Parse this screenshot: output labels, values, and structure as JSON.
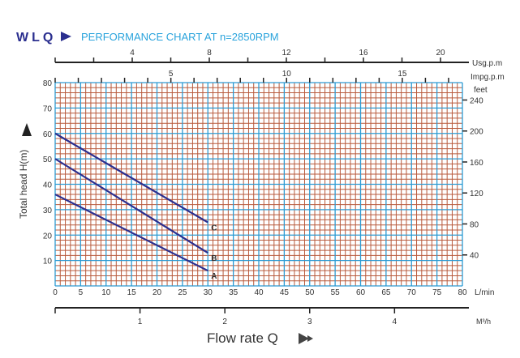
{
  "header": {
    "brand": "WLQ",
    "title": "PERFORMANCE CHART AT n=2850RPM"
  },
  "colors": {
    "brand": "#2b2f8f",
    "title": "#29a3dc",
    "major_grid": "#2d9bd3",
    "minor_grid": "#b85a3c",
    "curve": "#2b2f8f"
  },
  "chart_data": {
    "type": "line",
    "title": "PERFORMANCE CHART AT n=2850RPM",
    "xlabel": "Flow rate Q",
    "ylabel": "Total head H(m)",
    "xlim": [
      0,
      80
    ],
    "ylim": [
      0,
      80
    ],
    "x_unit": "L/min",
    "x_ticks": [
      0,
      5,
      10,
      15,
      20,
      25,
      30,
      35,
      40,
      45,
      50,
      55,
      60,
      65,
      70,
      75,
      80
    ],
    "y_ticks": [
      10,
      20,
      30,
      40,
      50,
      60,
      70,
      80
    ],
    "grid": true,
    "series": [
      {
        "name": "A",
        "x": [
          0,
          30
        ],
        "y": [
          36,
          6
        ]
      },
      {
        "name": "B",
        "x": [
          0,
          30
        ],
        "y": [
          50,
          13
        ]
      },
      {
        "name": "C",
        "x": [
          0,
          30
        ],
        "y": [
          60,
          25
        ]
      }
    ],
    "secondary_axes": {
      "usgpm": {
        "label": "Usg.p.m",
        "ticks": [
          4,
          8,
          12,
          16,
          20
        ],
        "factor_lpm": 3.785
      },
      "impgpm": {
        "label": "Impg.p.m",
        "ticks": [
          5,
          10,
          15
        ],
        "factor_lpm": 4.546
      },
      "feet": {
        "label": "feet",
        "ticks": [
          40,
          80,
          120,
          160,
          200,
          240
        ],
        "factor_m": 0.3048
      },
      "m3h": {
        "label": "M³/h",
        "ticks": [
          1,
          2,
          3,
          4
        ],
        "factor_lpm": 16.667
      }
    }
  }
}
